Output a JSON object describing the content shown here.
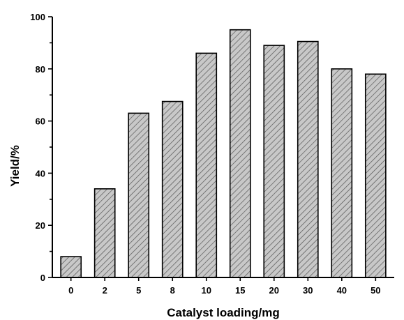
{
  "chart_data": {
    "type": "bar",
    "categories": [
      "0",
      "2",
      "5",
      "8",
      "10",
      "15",
      "20",
      "30",
      "40",
      "50"
    ],
    "values": [
      8,
      34,
      63,
      67.5,
      86,
      95,
      89,
      90.5,
      80,
      78
    ],
    "xlabel": "Catalyst loading/mg",
    "ylabel": "Yield/%",
    "ylim": [
      0,
      100
    ],
    "yticks": [
      0,
      20,
      40,
      60,
      80,
      100
    ],
    "grid": false,
    "bar_fill": "#c8c8c8",
    "bar_pattern": "diagonal-hatch",
    "bar_edge_color": "#000000"
  }
}
